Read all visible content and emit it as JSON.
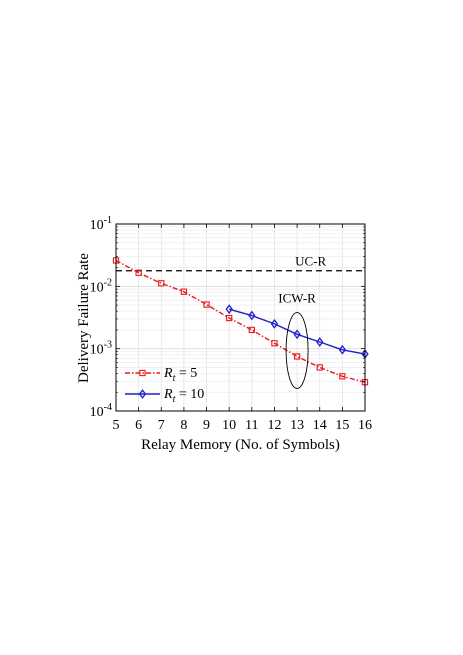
{
  "chart_data": {
    "type": "line",
    "xlabel": "Relay Memory (No. of Symbols)",
    "ylabel": "Delivery Failure Rate",
    "xlim": [
      5,
      16
    ],
    "ylim": [
      0.0001,
      0.1
    ],
    "yscale": "log",
    "grid": true,
    "x_ticks": [
      "5",
      "6",
      "7",
      "8",
      "9",
      "10",
      "11",
      "12",
      "13",
      "14",
      "15",
      "16"
    ],
    "y_ticks": [
      {
        "value": 0.0001,
        "base": "10",
        "exp": "-4"
      },
      {
        "value": 0.001,
        "base": "10",
        "exp": "-3"
      },
      {
        "value": 0.01,
        "base": "10",
        "exp": "-2"
      },
      {
        "value": 0.1,
        "base": "10",
        "exp": "-1"
      }
    ],
    "legend_position": "bottom-left",
    "series": [
      {
        "legend_main": "R",
        "legend_sub": "t",
        "legend_suffix": "= 5",
        "color": "#e8191c",
        "line": "dash-dot",
        "marker": "square",
        "x": [
          5,
          6,
          7,
          8,
          9,
          10,
          11,
          12,
          13,
          14,
          15,
          16
        ],
        "y": [
          0.026,
          0.0165,
          0.0112,
          0.0082,
          0.0051,
          0.0031,
          0.002,
          0.00122,
          0.00075,
          0.0005,
          0.00036,
          0.00029
        ]
      },
      {
        "legend_main": "R",
        "legend_sub": "t",
        "legend_suffix": "= 10",
        "color": "#1f1fcc",
        "line": "solid",
        "marker": "diamond",
        "x": [
          10,
          11,
          12,
          13,
          14,
          15,
          16
        ],
        "y": [
          0.0043,
          0.0034,
          0.0025,
          0.0017,
          0.00128,
          0.00096,
          0.00082
        ]
      }
    ],
    "reference_lines": [
      {
        "label": "UC-R",
        "y": 0.0178,
        "style": "dashed",
        "color": "#000000"
      }
    ],
    "annotations": [
      {
        "text": "ICW-R",
        "x": 13,
        "y_low": 0.00023,
        "y_high": 0.0038,
        "shape": "ellipse"
      }
    ]
  }
}
